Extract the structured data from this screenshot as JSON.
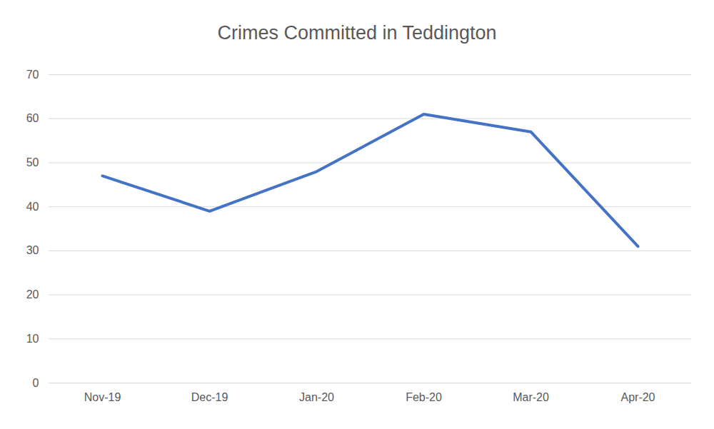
{
  "chart_data": {
    "type": "line",
    "title": "Crimes Committed in Teddington",
    "categories": [
      "Nov-19",
      "Dec-19",
      "Jan-20",
      "Feb-20",
      "Mar-20",
      "Apr-20"
    ],
    "values": [
      47,
      39,
      48,
      61,
      57,
      31
    ],
    "color": "#4472c4",
    "ylim": [
      0,
      70
    ],
    "yticks": [
      0,
      10,
      20,
      30,
      40,
      50,
      60,
      70
    ],
    "grid": true
  }
}
